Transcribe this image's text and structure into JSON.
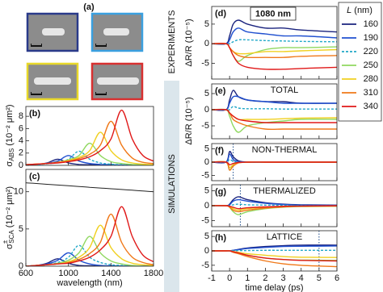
{
  "figure": {
    "panel_a_label": "(a)",
    "experiments": "EXPERIMENTS",
    "simulations": "SIMULATIONS",
    "legend": {
      "title_italic": "L",
      "title_rest": " (nm)",
      "names": [
        "160",
        "190",
        "220",
        "250",
        "280",
        "310",
        "340"
      ],
      "colors": [
        "#1a237e",
        "#2050d0",
        "#20a8c8",
        "#90d860",
        "#f0d020",
        "#f07818",
        "#e01818"
      ],
      "dashed": [
        false,
        false,
        true,
        false,
        false,
        false,
        false
      ]
    }
  },
  "chart_data": [
    {
      "type": "line",
      "label": "(b)",
      "ylabel": {
        "symbol": "σ",
        "sub": "ABS",
        "unit": " (10⁻² μm²)"
      },
      "x": [
        600,
        700,
        800,
        900,
        1000,
        1100,
        1200,
        1300,
        1400,
        1500,
        1600,
        1700,
        1800
      ],
      "xlim": [
        600,
        1800
      ],
      "xticks": [
        600,
        1000,
        1400,
        1800
      ],
      "ylim": [
        0,
        9.6
      ],
      "yticks": [
        0,
        2,
        4,
        6,
        8
      ],
      "series": [
        {
          "values": [
            0.1,
            0.15,
            0.4,
            1.0,
            0.4,
            0.15,
            0.1,
            0.05,
            0,
            0,
            0,
            0,
            0
          ]
        },
        {
          "values": [
            0.1,
            0.15,
            0.3,
            0.7,
            1.6,
            0.7,
            0.3,
            0.15,
            0.1,
            0.05,
            0,
            0,
            0
          ]
        },
        {
          "values": [
            0.1,
            0.15,
            0.25,
            0.5,
            1.0,
            2.3,
            1.0,
            0.4,
            0.2,
            0.1,
            0.05,
            0,
            0
          ]
        },
        {
          "values": [
            0.1,
            0.2,
            0.3,
            0.5,
            0.9,
            1.6,
            3.6,
            1.6,
            0.6,
            0.3,
            0.15,
            0.1,
            0.05
          ]
        },
        {
          "values": [
            0.1,
            0.2,
            0.3,
            0.5,
            0.8,
            1.3,
            2.4,
            5.4,
            2.4,
            0.9,
            0.4,
            0.2,
            0.1
          ]
        },
        {
          "values": [
            0.1,
            0.2,
            0.3,
            0.5,
            0.7,
            1.1,
            1.8,
            3.3,
            7.2,
            3.3,
            1.2,
            0.5,
            0.3
          ]
        },
        {
          "values": [
            0.1,
            0.2,
            0.3,
            0.4,
            0.6,
            0.9,
            1.4,
            2.4,
            4.3,
            9.0,
            4.3,
            1.6,
            0.7
          ]
        }
      ]
    },
    {
      "type": "line",
      "label": "(c)",
      "ylabel": {
        "symbol": "σ",
        "sup": "±",
        "sub": "SCA",
        "unit": " (10⁻² μm²)"
      },
      "xlabel": "wavelength (nm)",
      "x": [
        600,
        700,
        800,
        900,
        1000,
        1100,
        1200,
        1300,
        1400,
        1500,
        1600,
        1700,
        1800
      ],
      "xlim": [
        600,
        1800
      ],
      "xticks": [
        600,
        1000,
        1400,
        1800
      ],
      "ylim": [
        0,
        13
      ],
      "yticks": [
        0,
        5,
        10
      ],
      "reference": {
        "color": "#222222",
        "values": [
          11.2,
          11.1,
          11.0,
          10.9,
          10.8,
          10.7,
          10.6,
          10.5,
          10.4,
          10.3,
          10.2,
          10.1,
          10.0
        ]
      },
      "series": [
        {
          "values": [
            0,
            0.1,
            0.4,
            1.0,
            0.4,
            0.1,
            0.05,
            0,
            0,
            0,
            0,
            0,
            0
          ]
        },
        {
          "values": [
            0,
            0.1,
            0.3,
            0.8,
            1.8,
            0.8,
            0.3,
            0.1,
            0.05,
            0,
            0,
            0,
            0
          ]
        },
        {
          "values": [
            0,
            0.1,
            0.2,
            0.5,
            1.2,
            2.8,
            1.2,
            0.5,
            0.2,
            0.1,
            0,
            0,
            0
          ]
        },
        {
          "values": [
            0,
            0.1,
            0.2,
            0.4,
            0.8,
            1.8,
            4.0,
            1.8,
            0.7,
            0.3,
            0.1,
            0,
            0
          ]
        },
        {
          "values": [
            0,
            0.1,
            0.2,
            0.3,
            0.6,
            1.2,
            2.5,
            5.5,
            2.5,
            1.0,
            0.4,
            0.2,
            0.1
          ]
        },
        {
          "values": [
            0,
            0.1,
            0.2,
            0.3,
            0.5,
            0.9,
            1.7,
            3.2,
            7.0,
            3.2,
            1.2,
            0.5,
            0.2
          ]
        },
        {
          "values": [
            0,
            0.1,
            0.2,
            0.3,
            0.4,
            0.7,
            1.2,
            2.2,
            4.0,
            8.0,
            4.0,
            1.5,
            0.6
          ]
        }
      ]
    },
    {
      "type": "line",
      "label": "(d)",
      "annotation": "1080 nm",
      "ylabel": "ΔR/R (10⁻⁵)",
      "x": [
        -1,
        -0.2,
        0,
        0.2,
        0.5,
        1,
        2,
        3,
        4,
        6
      ],
      "xlim": [
        -1,
        6
      ],
      "xticks": [
        -1,
        0,
        1,
        2,
        3,
        4,
        5,
        6
      ],
      "ylim": [
        -9,
        9.5
      ],
      "yticks": [
        -5,
        0,
        5
      ],
      "series": [
        {
          "values": [
            0,
            0,
            2,
            5,
            6,
            5,
            4,
            4,
            3.5,
            3
          ]
        },
        {
          "values": [
            0,
            0,
            1,
            3,
            4,
            3,
            2.5,
            2,
            2,
            1.5
          ]
        },
        {
          "values": [
            0,
            0,
            0,
            0.5,
            1,
            1,
            0.8,
            0.7,
            0.6,
            0.5
          ]
        },
        {
          "values": [
            0,
            0,
            -1,
            -3,
            -4.5,
            -3,
            -1.5,
            -1,
            -1,
            -0.8
          ]
        },
        {
          "values": [
            0,
            0,
            -1,
            -2,
            -2.5,
            -2.5,
            -2,
            -2,
            -1.8,
            -1.5
          ]
        },
        {
          "values": [
            0,
            0,
            -1,
            -2,
            -3,
            -3.5,
            -3.5,
            -3.5,
            -3.2,
            -3
          ]
        },
        {
          "values": [
            0,
            0,
            -1,
            -3,
            -5,
            -6,
            -6.5,
            -6.5,
            -6.3,
            -6
          ]
        }
      ]
    },
    {
      "type": "line",
      "label": "(e)",
      "title": "TOTAL",
      "ylabel": "ΔR/R (10⁻⁵)",
      "x": [
        -1,
        -0.2,
        0,
        0.2,
        0.5,
        1,
        2,
        3,
        4,
        6
      ],
      "xlim": [
        -1,
        6
      ],
      "xticks": [
        -1,
        0,
        1,
        2,
        3,
        4,
        5,
        6
      ],
      "ylim": [
        -9,
        8
      ],
      "yticks": [
        -5,
        0,
        5
      ],
      "series": [
        {
          "values": [
            0,
            0,
            3,
            6,
            4,
            3,
            2.5,
            2.5,
            2,
            2
          ]
        },
        {
          "values": [
            0,
            0,
            2,
            4,
            4,
            3,
            2.5,
            2,
            2,
            2
          ]
        },
        {
          "values": [
            0,
            0,
            0,
            1,
            0.5,
            0.3,
            0.3,
            0.2,
            0.2,
            0.2
          ]
        },
        {
          "values": [
            0,
            0,
            -2,
            -5,
            -7,
            -5,
            -4,
            -3.5,
            -3,
            -3
          ]
        },
        {
          "values": [
            0,
            0,
            -1,
            -2,
            -3,
            -3,
            -3,
            -2.8,
            -2.6,
            -2.5
          ]
        },
        {
          "values": [
            0,
            0,
            -1,
            -3,
            -4,
            -5,
            -6,
            -6,
            -6,
            -6
          ]
        },
        {
          "values": [
            0,
            0,
            -1,
            -2,
            -3,
            -3.5,
            -4,
            -4,
            -4,
            -4
          ]
        }
      ]
    },
    {
      "type": "line",
      "label": "(f)",
      "title": "NON-THERMAL",
      "vline": 0.2,
      "x": [
        -1,
        -0.2,
        0,
        0.2,
        0.5,
        1,
        2,
        3,
        4,
        6
      ],
      "xlim": [
        -1,
        6
      ],
      "xticks": [
        -1,
        0,
        1,
        2,
        3,
        4,
        5,
        6
      ],
      "ylim": [
        -7,
        7
      ],
      "yticks": [
        -5,
        0,
        5
      ],
      "series": [
        {
          "values": [
            0,
            0,
            4,
            2,
            0.5,
            0,
            0,
            0,
            0,
            0
          ]
        },
        {
          "values": [
            0,
            0,
            3,
            1,
            0.2,
            0,
            0,
            0,
            0,
            0
          ]
        },
        {
          "values": [
            0,
            0,
            1,
            0.3,
            0,
            0,
            0,
            0,
            0,
            0
          ]
        },
        {
          "values": [
            0,
            0,
            -3,
            -1,
            -0.2,
            0,
            0,
            0,
            0,
            0
          ]
        },
        {
          "values": [
            0,
            0,
            -2,
            -1,
            -0.2,
            0,
            0,
            0,
            0,
            0
          ]
        },
        {
          "values": [
            0,
            0,
            -3,
            -1.5,
            -0.3,
            0,
            0,
            0,
            0,
            0
          ]
        },
        {
          "values": [
            0,
            0,
            -1,
            -0.5,
            -0.1,
            0,
            0,
            0,
            0,
            0
          ]
        }
      ]
    },
    {
      "type": "line",
      "label": "(g)",
      "title": "THERMALIZED",
      "vline": 0.6,
      "x": [
        -1,
        -0.2,
        0,
        0.2,
        0.5,
        1,
        2,
        3,
        4,
        6
      ],
      "xlim": [
        -1,
        6
      ],
      "xticks": [
        -1,
        0,
        1,
        2,
        3,
        4,
        5,
        6
      ],
      "ylim": [
        -7,
        7
      ],
      "yticks": [
        -5,
        0,
        5
      ],
      "series": [
        {
          "values": [
            0,
            0,
            0.5,
            2,
            3,
            2,
            1,
            0.5,
            0.3,
            0.2
          ]
        },
        {
          "values": [
            0,
            0,
            0.3,
            1.5,
            2,
            1.5,
            0.8,
            0.4,
            0.2,
            0.1
          ]
        },
        {
          "values": [
            0,
            0,
            0,
            0.3,
            0.5,
            0.3,
            0.2,
            0.1,
            0,
            0
          ]
        },
        {
          "values": [
            0,
            0,
            -0.5,
            -2,
            -3,
            -2,
            -1,
            -0.5,
            -0.3,
            -0.2
          ]
        },
        {
          "values": [
            0,
            0,
            -0.3,
            -1,
            -1.5,
            -1,
            -0.5,
            -0.3,
            -0.2,
            -0.1
          ]
        },
        {
          "values": [
            0,
            0,
            -0.5,
            -1.5,
            -2,
            -1.5,
            -0.8,
            -0.4,
            -0.2,
            -0.1
          ]
        },
        {
          "values": [
            0,
            0,
            -0.2,
            -0.5,
            -1,
            -0.7,
            -0.4,
            -0.2,
            -0.1,
            0
          ]
        }
      ]
    },
    {
      "type": "line",
      "label": "(h)",
      "title": "LATTICE",
      "vline": 5,
      "xlabel": "time delay (ps)",
      "x": [
        -1,
        -0.2,
        0,
        0.2,
        0.5,
        1,
        2,
        3,
        4,
        6
      ],
      "xlim": [
        -1,
        6
      ],
      "xticks": [
        -1,
        0,
        1,
        2,
        3,
        4,
        5,
        6
      ],
      "ylim": [
        -7,
        7
      ],
      "yticks": [
        -5,
        0,
        5
      ],
      "series": [
        {
          "values": [
            0,
            0,
            0,
            0.2,
            0.5,
            1,
            1.5,
            1.8,
            2,
            2
          ]
        },
        {
          "values": [
            0,
            0,
            0,
            0.2,
            0.4,
            0.8,
            1.2,
            1.5,
            1.6,
            1.7
          ]
        },
        {
          "values": [
            0,
            0,
            0,
            0,
            0.1,
            0.1,
            0.2,
            0.2,
            0.2,
            0.2
          ]
        },
        {
          "values": [
            0,
            0,
            0,
            -0.3,
            -0.8,
            -1.5,
            -2.5,
            -3,
            -3.2,
            -3.3
          ]
        },
        {
          "values": [
            0,
            0,
            0,
            -0.2,
            -0.5,
            -1,
            -1.5,
            -2,
            -2.2,
            -2.3
          ]
        },
        {
          "values": [
            0,
            0,
            0,
            -0.5,
            -1,
            -2,
            -3.5,
            -4.5,
            -5,
            -5.5
          ]
        },
        {
          "values": [
            0,
            0,
            0,
            -0.3,
            -0.7,
            -1.5,
            -2.5,
            -3,
            -3.3,
            -3.5
          ]
        }
      ]
    }
  ]
}
